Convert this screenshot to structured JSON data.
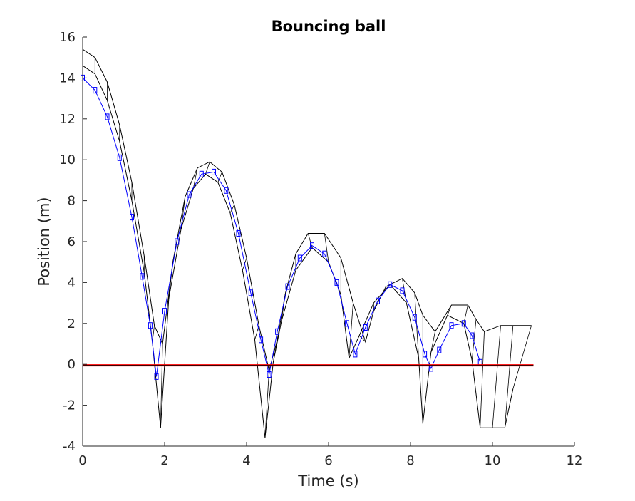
{
  "chart_data": {
    "type": "line",
    "title": "Bouncing ball",
    "xlabel": "Time (s)",
    "ylabel": "Position (m)",
    "xlim": [
      0,
      12
    ],
    "ylim": [
      -4,
      16
    ],
    "xticks": [
      "0",
      "2",
      "4",
      "6",
      "8",
      "10",
      "12"
    ],
    "yticks": [
      "-4",
      "-2",
      "0",
      "2",
      "4",
      "6",
      "8",
      "10",
      "12",
      "14",
      "16"
    ],
    "grid": false,
    "colors": {
      "reach_outline": "#000000",
      "estimate": "#0000ff",
      "ground": "#ff0000"
    },
    "series": [
      {
        "role": "reachable-set-upper",
        "x": [
          0.0,
          0.3,
          0.6,
          0.9,
          1.2,
          1.5,
          1.75,
          1.95,
          2.2,
          2.5,
          2.8,
          3.1,
          3.4,
          3.7,
          4.0,
          4.3,
          4.55,
          4.75,
          4.95,
          5.2,
          5.5,
          5.9,
          6.3,
          6.6,
          6.9,
          7.1,
          7.4,
          7.8,
          8.1,
          8.3,
          8.6,
          9.0,
          9.4,
          9.6,
          9.8,
          10.2,
          10.5,
          10.95
        ],
        "y": [
          15.4,
          15.0,
          13.8,
          11.7,
          8.9,
          5.3,
          1.9,
          1.0,
          5.0,
          8.2,
          9.6,
          9.9,
          9.4,
          7.8,
          5.2,
          1.9,
          -0.3,
          1.2,
          3.5,
          5.4,
          6.4,
          6.4,
          5.2,
          3.0,
          1.1,
          2.6,
          3.8,
          4.2,
          3.5,
          2.4,
          1.6,
          2.9,
          2.9,
          2.2,
          1.6,
          1.9,
          1.9,
          1.9
        ]
      },
      {
        "role": "reachable-set-lower",
        "x": [
          0.0,
          0.3,
          0.6,
          0.9,
          1.2,
          1.5,
          1.7,
          1.9,
          2.1,
          2.4,
          2.7,
          3.0,
          3.3,
          3.6,
          3.9,
          4.2,
          4.45,
          4.65,
          4.85,
          5.2,
          5.6,
          6.0,
          6.3,
          6.5,
          6.75,
          7.1,
          7.5,
          7.9,
          8.2,
          8.3,
          8.5,
          8.9,
          9.3,
          9.5,
          9.7,
          10.0,
          10.3,
          10.5
        ],
        "y": [
          14.6,
          14.2,
          12.9,
          10.9,
          8.0,
          4.5,
          1.1,
          -3.1,
          3.2,
          6.6,
          8.6,
          9.3,
          8.9,
          7.4,
          4.6,
          1.2,
          -3.6,
          0.1,
          2.1,
          4.6,
          5.7,
          5.0,
          3.4,
          0.3,
          1.4,
          3.0,
          3.9,
          3.0,
          0.3,
          -2.9,
          0.6,
          2.4,
          2.0,
          0.2,
          -3.1,
          -3.1,
          -3.1,
          -1.2
        ]
      },
      {
        "role": "state-estimate",
        "x": [
          0.0,
          0.3,
          0.6,
          0.9,
          1.2,
          1.45,
          1.65,
          1.8,
          2.0,
          2.3,
          2.6,
          2.9,
          3.2,
          3.5,
          3.8,
          4.1,
          4.35,
          4.55,
          4.75,
          5.0,
          5.3,
          5.6,
          5.9,
          6.2,
          6.45,
          6.65,
          6.9,
          7.2,
          7.5,
          7.8,
          8.1,
          8.35,
          8.5,
          8.7,
          9.0,
          9.3,
          9.5,
          9.7
        ],
        "y": [
          14.0,
          13.4,
          12.1,
          10.1,
          7.2,
          4.3,
          1.9,
          -0.6,
          2.6,
          6.0,
          8.3,
          9.3,
          9.4,
          8.5,
          6.4,
          3.5,
          1.2,
          -0.5,
          1.6,
          3.8,
          5.2,
          5.8,
          5.4,
          4.0,
          2.0,
          0.5,
          1.8,
          3.1,
          3.9,
          3.6,
          2.3,
          0.5,
          -0.2,
          0.7,
          1.9,
          2.0,
          1.4,
          0.1
        ]
      },
      {
        "role": "ground",
        "x": [
          0.0,
          11.0
        ],
        "y": [
          -0.05,
          -0.05
        ]
      }
    ]
  }
}
